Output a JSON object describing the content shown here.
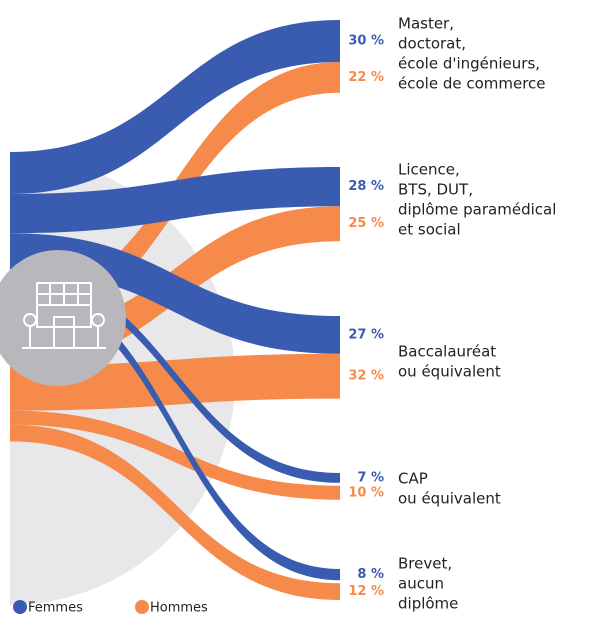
{
  "chart_data": {
    "type": "sankey",
    "categories": [
      [
        "Master,",
        "doctorat,",
        "école d'ingénieurs,",
        "école de commerce"
      ],
      [
        "Licence,",
        "BTS, DUT,",
        "diplôme paramédical",
        "et social"
      ],
      [
        "Baccalauréat",
        "ou équivalent"
      ],
      [
        "CAP",
        "ou équivalent"
      ],
      [
        "Brevet,",
        "aucun",
        "diplôme"
      ]
    ],
    "series": [
      {
        "name": "Femmes",
        "color": "#3a5cb0",
        "values": [
          30,
          28,
          27,
          7,
          8
        ],
        "value_labels": [
          "30 %",
          "28 %",
          "27 %",
          "7 %",
          "8 %"
        ]
      },
      {
        "name": "Hommes",
        "color": "#f58a4b",
        "values": [
          22,
          25,
          32,
          10,
          12
        ],
        "value_labels": [
          "22 %",
          "25 %",
          "32 %",
          "10 %",
          "12 %"
        ]
      }
    ]
  }
}
